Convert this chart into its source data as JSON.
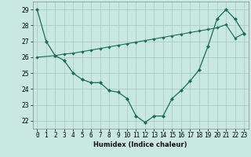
{
  "xlabel": "Humidex (Indice chaleur)",
  "bg_color": "#c8e8e0",
  "grid_color": "#aacccc",
  "line_color": "#1a6b5a",
  "ylim": [
    21.5,
    29.5
  ],
  "xlim": [
    -0.5,
    23.5
  ],
  "yticks": [
    22,
    23,
    24,
    25,
    26,
    27,
    28,
    29
  ],
  "xticks": [
    0,
    1,
    2,
    3,
    4,
    5,
    6,
    7,
    8,
    9,
    10,
    11,
    12,
    13,
    14,
    15,
    16,
    17,
    18,
    19,
    20,
    21,
    22,
    23
  ],
  "curve1_x": [
    0,
    1,
    2,
    3,
    4,
    5,
    6,
    7,
    8,
    9,
    10,
    11,
    12,
    13,
    14,
    15,
    16,
    17,
    18,
    19,
    20,
    21,
    22,
    23
  ],
  "curve1_y": [
    29.0,
    27.0,
    26.1,
    25.8,
    25.0,
    24.6,
    24.4,
    24.4,
    23.9,
    23.8,
    23.4,
    22.3,
    21.9,
    22.3,
    22.3,
    23.4,
    23.9,
    24.5,
    25.2,
    26.7,
    28.4,
    29.0,
    28.4,
    27.5
  ],
  "curve2_x": [
    0,
    2,
    3,
    4,
    5,
    6,
    7,
    8,
    9,
    10,
    11,
    12,
    13,
    14,
    15,
    16,
    17,
    18,
    19,
    20,
    21,
    22,
    23
  ],
  "curve2_y": [
    26.0,
    26.1,
    26.2,
    26.25,
    26.35,
    26.45,
    26.55,
    26.65,
    26.75,
    26.85,
    26.95,
    27.05,
    27.15,
    27.25,
    27.35,
    27.45,
    27.55,
    27.65,
    27.75,
    27.85,
    28.05,
    27.2,
    27.5
  ],
  "marker_style": "D",
  "marker_size1": 2.2,
  "marker_size2": 1.8,
  "lw1": 0.9,
  "lw2": 0.8,
  "tick_fontsize": 5.5,
  "xlabel_fontsize": 6.0
}
